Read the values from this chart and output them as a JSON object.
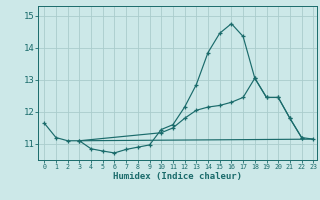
{
  "xlabel": "Humidex (Indice chaleur)",
  "bg_color": "#cce8e8",
  "grid_color": "#aacccc",
  "line_color": "#1a6b6b",
  "xlim": [
    -0.5,
    23.3
  ],
  "ylim": [
    10.5,
    15.3
  ],
  "yticks": [
    11,
    12,
    13,
    14,
    15
  ],
  "xticks": [
    0,
    1,
    2,
    3,
    4,
    5,
    6,
    7,
    8,
    9,
    10,
    11,
    12,
    13,
    14,
    15,
    16,
    17,
    18,
    19,
    20,
    21,
    22,
    23
  ],
  "line1_x": [
    0,
    1,
    2,
    3,
    4,
    5,
    6,
    7,
    8,
    9,
    10,
    11,
    12,
    13,
    14,
    15,
    16,
    17,
    18,
    19,
    20,
    21,
    22
  ],
  "line1_y": [
    11.65,
    11.2,
    11.1,
    11.1,
    10.85,
    10.78,
    10.72,
    10.83,
    10.9,
    10.97,
    11.45,
    11.6,
    12.15,
    12.85,
    13.85,
    14.45,
    14.75,
    14.35,
    13.05,
    12.45,
    12.45,
    11.8,
    11.2
  ],
  "line2_x": [
    3,
    23
  ],
  "line2_y": [
    11.1,
    11.15
  ],
  "line3_x": [
    3,
    10,
    11,
    12,
    13,
    14,
    15,
    16,
    17,
    18,
    19,
    20,
    21,
    22,
    23
  ],
  "line3_y": [
    11.1,
    11.35,
    11.5,
    11.8,
    12.05,
    12.15,
    12.2,
    12.3,
    12.45,
    13.05,
    12.45,
    12.45,
    11.8,
    11.2,
    11.15
  ]
}
